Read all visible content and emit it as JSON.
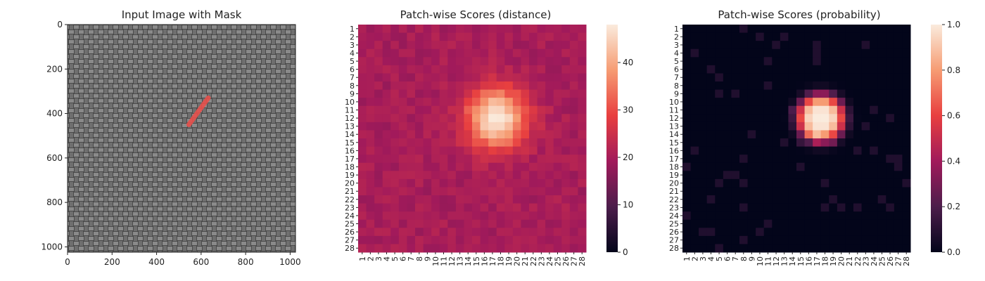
{
  "chart_data": [
    {
      "type": "image",
      "title": "Input Image with Mask",
      "xlim": [
        0,
        1024
      ],
      "ylim": [
        0,
        1024
      ],
      "xticks": [
        0,
        200,
        400,
        600,
        800,
        1000
      ],
      "yticks": [
        0,
        200,
        400,
        600,
        800,
        1000
      ],
      "background_color": "#555555",
      "mask_color": "#e8504c",
      "mask_segment": {
        "x": [
          545,
          632
        ],
        "y": [
          450,
          330
        ]
      }
    },
    {
      "type": "heatmap",
      "title": "Patch-wise Scores (distance)",
      "rows": 28,
      "cols": 28,
      "labels": [
        "1",
        "2",
        "3",
        "4",
        "5",
        "6",
        "7",
        "8",
        "9",
        "10",
        "11",
        "12",
        "13",
        "14",
        "15",
        "16",
        "17",
        "18",
        "19",
        "20",
        "21",
        "22",
        "23",
        "24",
        "25",
        "26",
        "27",
        "28"
      ],
      "colorbar": {
        "range": [
          0,
          48
        ],
        "ticks": [
          "0",
          "10",
          "20",
          "30",
          "40"
        ]
      },
      "baseline": 20,
      "hotspot": {
        "row": 12,
        "col": 17.5,
        "peak": 48,
        "radius": 2.6
      }
    },
    {
      "type": "heatmap",
      "title": "Patch-wise Scores (probability)",
      "rows": 28,
      "cols": 28,
      "labels": [
        "1",
        "2",
        "3",
        "4",
        "5",
        "6",
        "7",
        "8",
        "9",
        "10",
        "11",
        "12",
        "13",
        "14",
        "15",
        "16",
        "17",
        "18",
        "19",
        "20",
        "21",
        "22",
        "23",
        "24",
        "25",
        "26",
        "27",
        "28"
      ],
      "colorbar": {
        "range": [
          0,
          1.0
        ],
        "ticks": [
          "0.0",
          "0.2",
          "0.4",
          "0.6",
          "0.8",
          "1.0"
        ]
      },
      "baseline": 0.0,
      "hotspot": {
        "row": 12,
        "col": 17.5,
        "peak": 1.0,
        "radius": 2.6
      }
    }
  ]
}
